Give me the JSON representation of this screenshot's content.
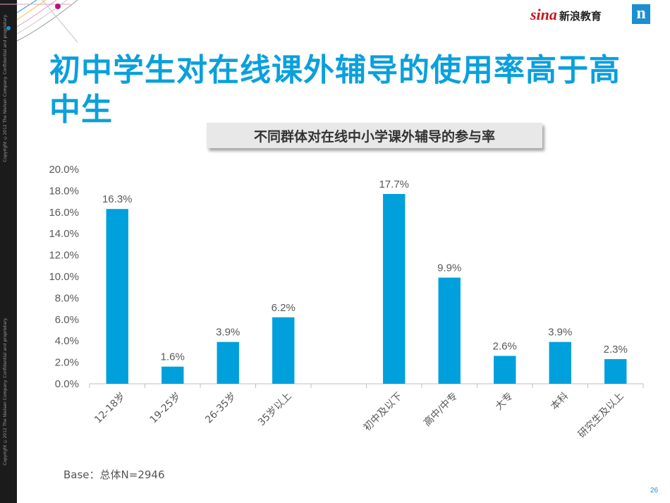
{
  "title": "初中学生对在线课外辅导的使用率高于高中生",
  "chart_title": "不同群体对在线中小学课外辅导的参与率",
  "logo": {
    "brand": "sina",
    "brand_cn": "新浪教育",
    "corner_mark": "n"
  },
  "footer": {
    "base": "Base：总体N=2946",
    "page_number": "26"
  },
  "sidebar_text": [
    "Copyright ©2012 The Nielsen Company. Confidential and proprietary.",
    "Copyright ©2012 The Nielsen Company. Confidential and proprietary."
  ],
  "colors": {
    "bar": "#00a0dc",
    "title": "#0aa0dc",
    "accent_pink": "#e0007a"
  },
  "chart_data": {
    "type": "bar",
    "ylim": [
      0,
      20
    ],
    "yticks": [
      "0.0%",
      "2.0%",
      "4.0%",
      "6.0%",
      "8.0%",
      "10.0%",
      "12.0%",
      "14.0%",
      "16.0%",
      "18.0%",
      "20.0%"
    ],
    "groups": [
      {
        "categories": [
          "12-18岁",
          "19-25岁",
          "26-35岁",
          "35岁以上"
        ],
        "values": [
          16.3,
          1.6,
          3.9,
          6.2
        ],
        "labels": [
          "16.3%",
          "1.6%",
          "3.9%",
          "6.2%"
        ]
      },
      {
        "categories": [
          "初中及以下",
          "高中/中专",
          "大专",
          "本科",
          "研究生及以上"
        ],
        "values": [
          17.7,
          9.9,
          2.6,
          3.9,
          2.3
        ],
        "labels": [
          "17.7%",
          "9.9%",
          "2.6%",
          "3.9%",
          "2.3%"
        ]
      }
    ],
    "grid": false,
    "legend": "none"
  }
}
